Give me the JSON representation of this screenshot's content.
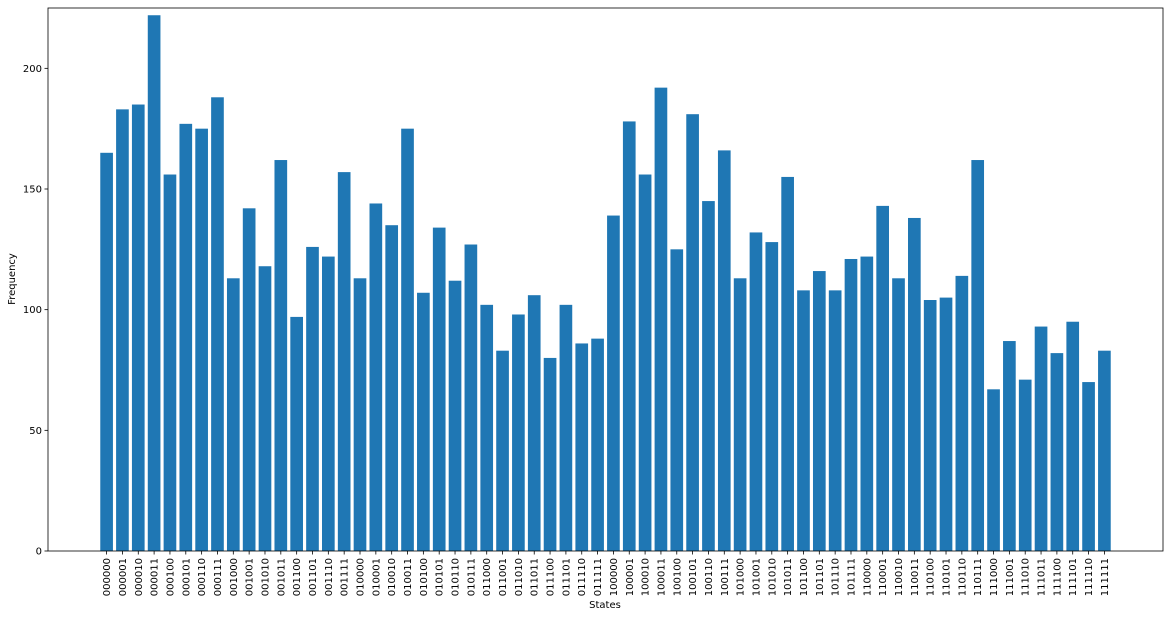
{
  "chart_data": {
    "type": "bar",
    "title": "",
    "xlabel": "States",
    "ylabel": "Frequency",
    "ylim": [
      0,
      225
    ],
    "yticks": [
      0,
      50,
      100,
      150,
      200
    ],
    "grid": false,
    "bar_color": "#1f77b4",
    "categories": [
      "000000",
      "000001",
      "000010",
      "000011",
      "000100",
      "000101",
      "000110",
      "000111",
      "001000",
      "001001",
      "001010",
      "001011",
      "001100",
      "001101",
      "001110",
      "001111",
      "010000",
      "010001",
      "010010",
      "010011",
      "010100",
      "010101",
      "010110",
      "010111",
      "011000",
      "011001",
      "011010",
      "011011",
      "011100",
      "011101",
      "011110",
      "011111",
      "100000",
      "100001",
      "100010",
      "100011",
      "100100",
      "100101",
      "100110",
      "100111",
      "101000",
      "101001",
      "101010",
      "101011",
      "101100",
      "101101",
      "101110",
      "101111",
      "110000",
      "110001",
      "110010",
      "110011",
      "110100",
      "110101",
      "110110",
      "110111",
      "111000",
      "111001",
      "111010",
      "111011",
      "111100",
      "111101",
      "111110",
      "111111"
    ],
    "values": [
      165,
      183,
      185,
      222,
      156,
      177,
      175,
      188,
      113,
      142,
      118,
      162,
      97,
      126,
      122,
      157,
      113,
      144,
      135,
      175,
      107,
      134,
      112,
      127,
      102,
      83,
      98,
      106,
      80,
      102,
      86,
      88,
      139,
      178,
      156,
      192,
      125,
      181,
      145,
      166,
      113,
      132,
      128,
      155,
      108,
      116,
      108,
      121,
      122,
      143,
      113,
      138,
      104,
      105,
      114,
      162,
      67,
      87,
      71,
      93,
      82,
      95,
      70,
      83
    ]
  }
}
